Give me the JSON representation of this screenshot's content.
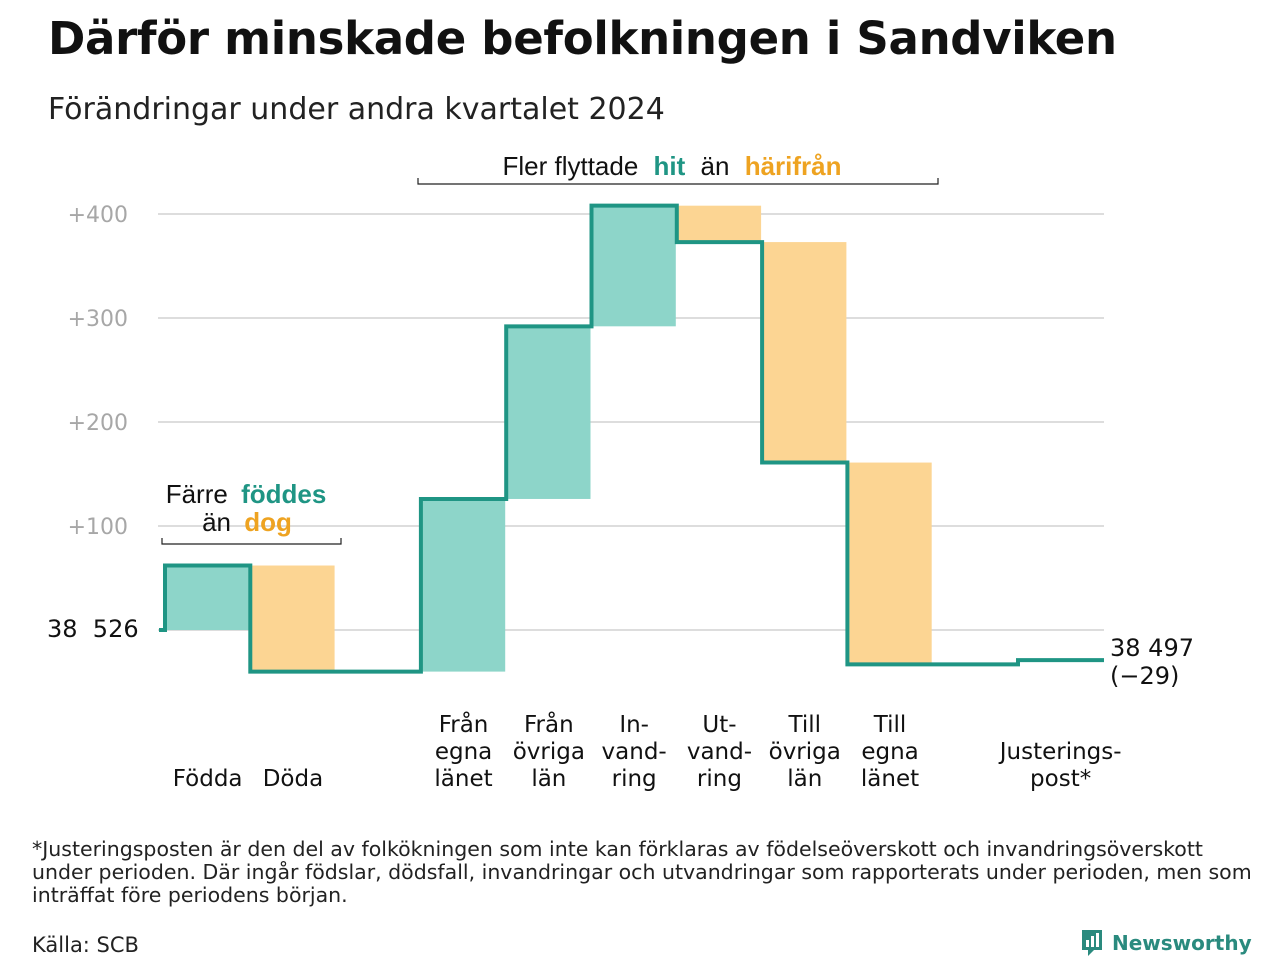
{
  "header": {
    "title": "Därför minskade befolkningen i Sandviken",
    "subtitle": "Förändringar under andra kvartalet 2024"
  },
  "annotations": {
    "migration": {
      "before": "Fler flyttade",
      "hit": "hit",
      "middle": "än",
      "harifran": "härifrån"
    },
    "births": {
      "line1_before": "Färre",
      "line1_hl": "föddes",
      "line2_before": "än",
      "line2_hl": "dog"
    }
  },
  "start_label": "38  526",
  "end_label": {
    "value": "38 497",
    "change": "(−29)"
  },
  "footer": {
    "note": "*Justeringsposten är den del av folkökningen som inte kan förklaras av födelseöverskott och invandringsöverskott under perioden. Där ingår födslar, dödsfall, invandringar och utvandringar som rapporterats under perioden, men som inträffat före periodens början.",
    "source": "Källa: SCB",
    "brand": "Newsworthy",
    "brand_icon": "newsworthy-logo-icon"
  },
  "colors": {
    "increase": "#8dd5c9",
    "decrease": "#fcd593",
    "line": "#1f9584",
    "hit": "#1f9584",
    "harifran": "#eea321",
    "grid": "#dddddd",
    "tick": "#a7a7a7"
  },
  "chart_data": {
    "type": "waterfall",
    "start_value": 38526,
    "end_value": 38497,
    "net_change": -29,
    "ylim": [
      -45,
      420
    ],
    "y_ticks": [
      {
        "value": 100,
        "label": "+100"
      },
      {
        "value": 200,
        "label": "+200"
      },
      {
        "value": 300,
        "label": "+300"
      },
      {
        "value": 400,
        "label": "+400"
      }
    ],
    "grid": true,
    "steps": [
      {
        "lines": [
          "Födda"
        ],
        "delta": 62,
        "kind": "increase"
      },
      {
        "lines": [
          "Döda"
        ],
        "delta": -102,
        "kind": "decrease"
      },
      {
        "lines": [],
        "delta": 0,
        "kind": "gap"
      },
      {
        "lines": [
          "Från",
          "egna",
          "länet"
        ],
        "delta": 166,
        "kind": "increase"
      },
      {
        "lines": [
          "Från",
          "övriga",
          "län"
        ],
        "delta": 166,
        "kind": "increase"
      },
      {
        "lines": [
          "In-",
          "vand-",
          "ring"
        ],
        "delta": 116,
        "kind": "increase"
      },
      {
        "lines": [
          "Ut-",
          "vand-",
          "ring"
        ],
        "delta": -35,
        "kind": "decrease"
      },
      {
        "lines": [
          "Till",
          "övriga",
          "län"
        ],
        "delta": -212,
        "kind": "decrease"
      },
      {
        "lines": [
          "Till",
          "egna",
          "länet"
        ],
        "delta": -194,
        "kind": "decrease"
      },
      {
        "lines": [],
        "delta": 0,
        "kind": "gap"
      },
      {
        "lines": [
          "Justerings-",
          "post*"
        ],
        "delta": 4,
        "kind": "adjust"
      }
    ]
  }
}
